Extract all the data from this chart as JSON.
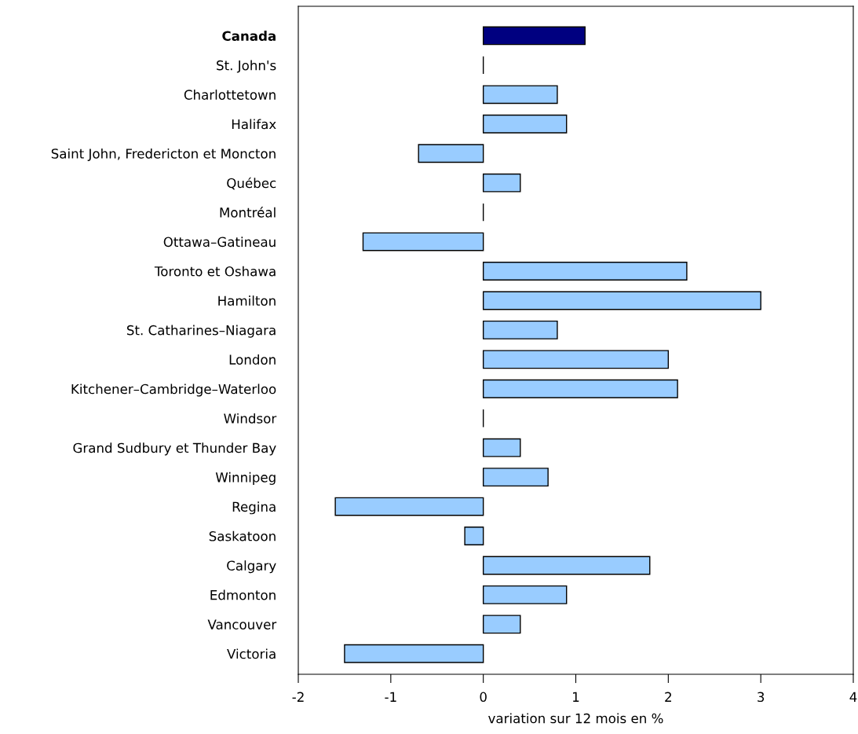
{
  "chart_data": {
    "type": "bar",
    "orientation": "horizontal",
    "xlabel": "variation sur 12 mois en %",
    "categories": [
      "Canada",
      "St. John's",
      "Charlottetown",
      "Halifax",
      "Saint John, Fredericton et Moncton",
      "Québec",
      "Montréal",
      "Ottawa–Gatineau",
      "Toronto et Oshawa",
      "Hamilton",
      "St. Catharines–Niagara",
      "London",
      "Kitchener–Cambridge–Waterloo",
      "Windsor",
      "Grand Sudbury et Thunder Bay",
      "Winnipeg",
      "Regina",
      "Saskatoon",
      "Calgary",
      "Edmonton",
      "Vancouver",
      "Victoria"
    ],
    "values": [
      1.1,
      0,
      0.8,
      0.9,
      -0.7,
      0.4,
      0,
      -1.3,
      2.2,
      3.0,
      0.8,
      2.0,
      2.1,
      0,
      0.4,
      0.7,
      -1.6,
      -0.2,
      1.8,
      0.9,
      0.4,
      -1.5
    ],
    "colors": [
      "#000080",
      "#000000",
      "#99ccff",
      "#99ccff",
      "#99ccff",
      "#99ccff",
      "#000000",
      "#99ccff",
      "#99ccff",
      "#99ccff",
      "#99ccff",
      "#99ccff",
      "#99ccff",
      "#000000",
      "#99ccff",
      "#99ccff",
      "#99ccff",
      "#99ccff",
      "#99ccff",
      "#99ccff",
      "#99ccff",
      "#99ccff"
    ],
    "xlim": [
      -2,
      4
    ],
    "xticks": [
      -2,
      -1,
      0,
      1,
      2,
      3,
      4
    ],
    "grid": false,
    "legend": false
  }
}
